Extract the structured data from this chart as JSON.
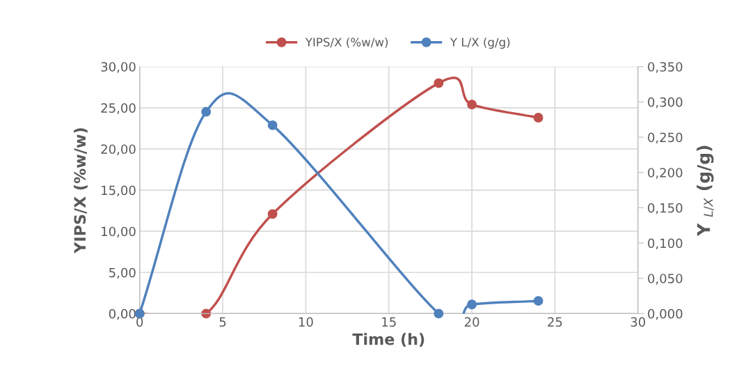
{
  "chart_data": {
    "type": "line",
    "xlabel": "Time (h)",
    "ylabel": "YIPS/X (%w/w)",
    "y2label": "Y $_{L/X}$ (g/g)",
    "xlim": [
      0,
      30
    ],
    "xticks": [
      0,
      5,
      10,
      15,
      20,
      25,
      30
    ],
    "ylim": [
      0,
      30
    ],
    "yticks": [
      {
        "value": 0,
        "label": "0,00"
      },
      {
        "value": 5,
        "label": "5,00"
      },
      {
        "value": 10,
        "label": "10,00"
      },
      {
        "value": 15,
        "label": "15,00"
      },
      {
        "value": 20,
        "label": "20,00"
      },
      {
        "value": 25,
        "label": "25,00"
      },
      {
        "value": 30,
        "label": "30,00"
      }
    ],
    "y2lim": [
      0,
      0.35
    ],
    "y2ticks": [
      {
        "value": 0,
        "label": "0,000"
      },
      {
        "value": 0.05,
        "label": "0,050"
      },
      {
        "value": 0.1,
        "label": "0,100"
      },
      {
        "value": 0.15,
        "label": "0,150"
      },
      {
        "value": 0.2,
        "label": "0,200"
      },
      {
        "value": 0.25,
        "label": "0,250"
      },
      {
        "value": 0.3,
        "label": "0,300"
      },
      {
        "value": 0.35,
        "label": "0,350"
      }
    ],
    "grid": true,
    "legend": "top",
    "marker": "circle",
    "line_style": "solid",
    "series": [
      {
        "name": "YIPS/X (%w/w)",
        "color": "#c0504d",
        "x": [
          0,
          4,
          8,
          18,
          20,
          24
        ],
        "values": [
          0,
          0,
          12.1,
          28.0,
          25.4,
          23.8
        ]
      },
      {
        "name": "Y L/X (g/g)",
        "color": "#4f81bd",
        "axis": "y2",
        "x": [
          0,
          4,
          8,
          18,
          20,
          24
        ],
        "values": [
          0,
          0.286,
          0.267,
          0,
          0.013,
          0.018
        ]
      }
    ]
  }
}
